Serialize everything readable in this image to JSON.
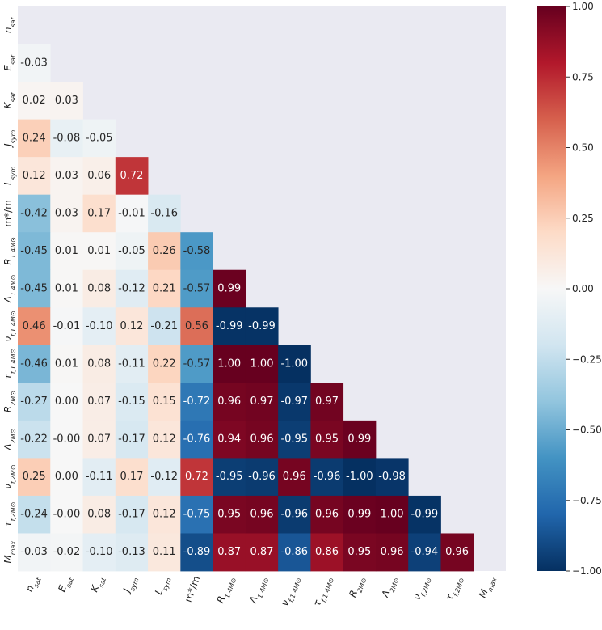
{
  "chart_data": {
    "type": "heatmap",
    "title": "",
    "variables": [
      {
        "base": "n",
        "sub": "sat",
        "italic": true
      },
      {
        "base": "E",
        "sub": "sat",
        "italic": true
      },
      {
        "base": "K",
        "sub": "sat",
        "italic": true
      },
      {
        "base": "J",
        "sub": "sym",
        "italic": true
      },
      {
        "base": "L",
        "sub": "sym",
        "italic": true
      },
      {
        "base": "m*/m",
        "sub": "",
        "italic": false
      },
      {
        "base": "R",
        "sub": "1.4M⊙",
        "italic": true
      },
      {
        "base": "Λ",
        "sub": "1.4M⊙",
        "italic": true
      },
      {
        "base": "ν",
        "sub": "f,1.4M⊙",
        "italic": true
      },
      {
        "base": "τ",
        "sub": "f,1.4M⊙",
        "italic": true
      },
      {
        "base": "R",
        "sub": "2M⊙",
        "italic": true
      },
      {
        "base": "Λ",
        "sub": "2M⊙",
        "italic": true
      },
      {
        "base": "ν",
        "sub": "f,2M⊙",
        "italic": true
      },
      {
        "base": "τ",
        "sub": "f,2M⊙",
        "italic": true
      },
      {
        "base": "M",
        "sub": "max",
        "italic": true
      }
    ],
    "matrix": [
      [],
      [
        -0.03
      ],
      [
        0.02,
        0.03
      ],
      [
        0.24,
        -0.08,
        -0.05
      ],
      [
        0.12,
        0.03,
        0.06,
        0.72
      ],
      [
        -0.42,
        0.03,
        0.17,
        -0.01,
        -0.16
      ],
      [
        -0.45,
        0.01,
        0.01,
        -0.05,
        0.26,
        -0.58
      ],
      [
        -0.45,
        0.01,
        0.08,
        -0.12,
        0.21,
        -0.57,
        0.99
      ],
      [
        0.46,
        -0.01,
        -0.1,
        0.12,
        -0.21,
        0.56,
        -0.99,
        -0.99
      ],
      [
        -0.46,
        0.01,
        0.08,
        -0.11,
        0.22,
        -0.57,
        1.0,
        1.0,
        -1.0
      ],
      [
        -0.27,
        0.0,
        0.07,
        -0.15,
        0.15,
        -0.72,
        0.96,
        0.97,
        -0.97,
        0.97
      ],
      [
        -0.22,
        -0.0,
        0.07,
        -0.17,
        0.12,
        -0.76,
        0.94,
        0.96,
        -0.95,
        0.95,
        0.99
      ],
      [
        0.25,
        0.0,
        -0.11,
        0.17,
        -0.12,
        0.72,
        -0.95,
        -0.96,
        0.96,
        -0.96,
        -1.0,
        -0.98
      ],
      [
        -0.24,
        -0.0,
        0.08,
        -0.17,
        0.12,
        -0.75,
        0.95,
        0.96,
        -0.96,
        0.96,
        0.99,
        1.0,
        -0.99
      ],
      [
        -0.03,
        -0.02,
        -0.1,
        -0.13,
        0.11,
        -0.89,
        0.87,
        0.87,
        -0.86,
        0.86,
        0.95,
        0.96,
        -0.94,
        0.96
      ]
    ],
    "value_range": [
      -1.0,
      1.0
    ],
    "colormap": "RdBu_r",
    "colormap_stops": [
      "#053061",
      "#2166ac",
      "#4393c3",
      "#92c5de",
      "#d1e5f0",
      "#f7f7f7",
      "#fddbc7",
      "#f4a582",
      "#d6604d",
      "#b2182b",
      "#67001f"
    ],
    "mask_color": "#eaeaf2",
    "colorbar": {
      "ticks": [
        1.0,
        0.75,
        0.5,
        0.25,
        0.0,
        -0.25,
        -0.5,
        -0.75,
        -1.0
      ],
      "tick_labels": [
        "1.00",
        "0.75",
        "0.50",
        "0.25",
        "0.00",
        "−0.25",
        "−0.50",
        "−0.75",
        "−1.00"
      ],
      "placement": "right"
    }
  }
}
